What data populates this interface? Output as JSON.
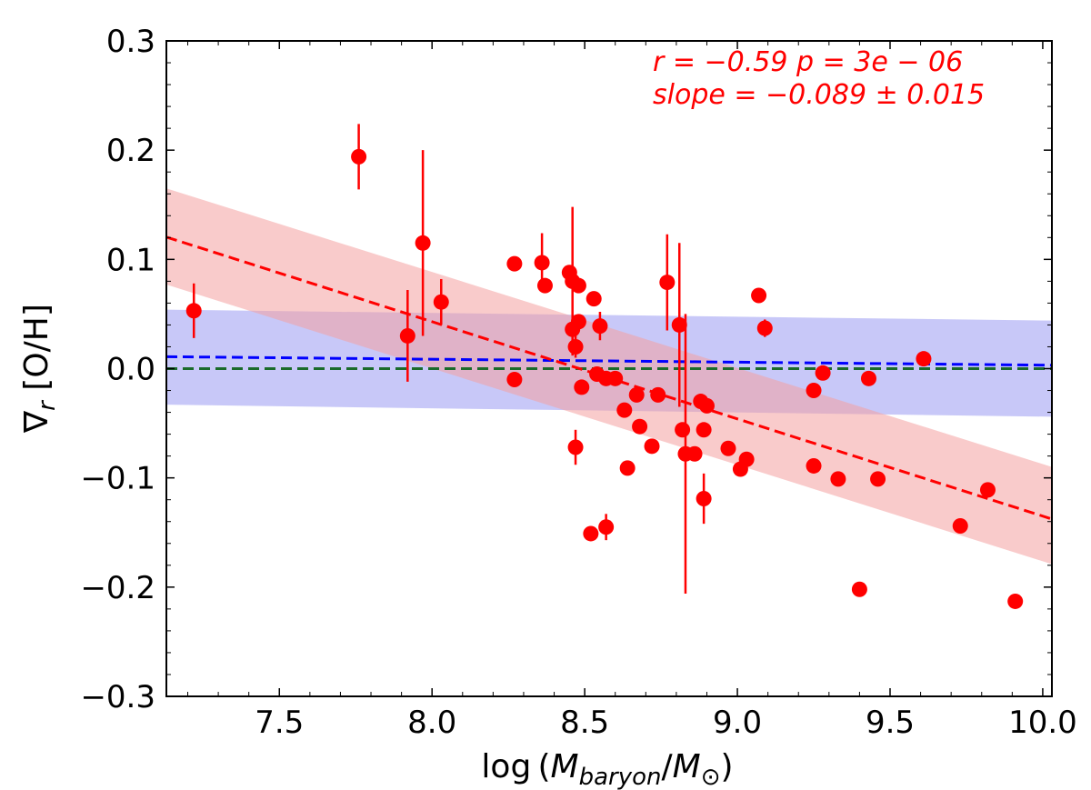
{
  "chart_data": {
    "type": "scatter",
    "xlabel": "log (M_baryon/M_⊙)",
    "xlabel_parts": {
      "prefix": "log (",
      "m1": "M",
      "sub1": "baryon",
      "slash": "/",
      "m2": "M",
      "sub2": "⊙",
      "suffix": ")"
    },
    "ylabel": "∇r [O/H]",
    "ylabel_parts": {
      "nabla": "∇",
      "sub": "r",
      "rest": " [O/H]"
    },
    "xlim": [
      7.13,
      10.03
    ],
    "ylim": [
      -0.3,
      0.3
    ],
    "xticks": [
      7.5,
      8.0,
      8.5,
      9.0,
      9.5,
      10.0
    ],
    "xtick_labels": [
      "7.5",
      "8.0",
      "8.5",
      "9.0",
      "9.5",
      "10.0"
    ],
    "yticks": [
      -0.3,
      -0.2,
      -0.1,
      0.0,
      0.1,
      0.2,
      0.3
    ],
    "ytick_labels": [
      "−0.3",
      "−0.2",
      "−0.1",
      "0.0",
      "0.1",
      "0.2",
      "0.3"
    ],
    "annotations": {
      "line1": "r = −0.59   p = 3e − 06",
      "line2": "slope = −0.089 ± 0.015"
    },
    "colors": {
      "points": "#ff0000",
      "fit_red": "#ff0000",
      "band_red": "#f4a0a0",
      "fit_blue": "#0000ff",
      "band_blue": "#9a9af2",
      "zero_line": "#1a6b2a"
    },
    "fits": {
      "red": {
        "slope": -0.089,
        "intercept": 0.755,
        "band_left": [
          0.077,
          0.165
        ],
        "band_right": [
          -0.179,
          -0.09
        ]
      },
      "blue": {
        "slope": -0.0027,
        "intercept": 0.0302,
        "band_left": [
          -0.033,
          0.054
        ],
        "band_right": [
          -0.044,
          0.044
        ]
      },
      "zero": 0.0
    },
    "points": [
      {
        "x": 7.22,
        "y": 0.053,
        "err": 0.025
      },
      {
        "x": 7.76,
        "y": 0.194,
        "err": 0.03
      },
      {
        "x": 7.92,
        "y": 0.03,
        "err": 0.042
      },
      {
        "x": 7.97,
        "y": 0.115,
        "err": 0.085
      },
      {
        "x": 8.03,
        "y": 0.061,
        "err": 0.021
      },
      {
        "x": 8.27,
        "y": 0.096,
        "err": 0.005
      },
      {
        "x": 8.27,
        "y": -0.01,
        "err": 0.0
      },
      {
        "x": 8.36,
        "y": 0.097,
        "err": 0.027
      },
      {
        "x": 8.37,
        "y": 0.076,
        "err": 0.0
      },
      {
        "x": 8.45,
        "y": 0.088,
        "err": 0.0
      },
      {
        "x": 8.46,
        "y": 0.036,
        "err": 0.0
      },
      {
        "x": 8.46,
        "y": 0.08,
        "err": 0.068
      },
      {
        "x": 8.47,
        "y": 0.02,
        "err": 0.01
      },
      {
        "x": 8.48,
        "y": 0.076,
        "err": 0.0
      },
      {
        "x": 8.48,
        "y": 0.043,
        "err": 0.0
      },
      {
        "x": 8.49,
        "y": -0.017,
        "err": 0.0
      },
      {
        "x": 8.47,
        "y": -0.072,
        "err": 0.016
      },
      {
        "x": 8.53,
        "y": 0.064,
        "err": 0.0
      },
      {
        "x": 8.52,
        "y": -0.151,
        "err": 0.0
      },
      {
        "x": 8.54,
        "y": -0.005,
        "err": 0.0
      },
      {
        "x": 8.55,
        "y": 0.039,
        "err": 0.013
      },
      {
        "x": 8.57,
        "y": -0.145,
        "err": 0.012
      },
      {
        "x": 8.57,
        "y": -0.009,
        "err": 0.0
      },
      {
        "x": 8.6,
        "y": -0.009,
        "err": 0.0
      },
      {
        "x": 8.63,
        "y": -0.038,
        "err": 0.0
      },
      {
        "x": 8.64,
        "y": -0.091,
        "err": 0.0
      },
      {
        "x": 8.67,
        "y": -0.024,
        "err": 0.0
      },
      {
        "x": 8.68,
        "y": -0.053,
        "err": 0.0
      },
      {
        "x": 8.72,
        "y": -0.071,
        "err": 0.0
      },
      {
        "x": 8.74,
        "y": -0.024,
        "err": 0.0
      },
      {
        "x": 8.77,
        "y": 0.079,
        "err": 0.044
      },
      {
        "x": 8.81,
        "y": 0.04,
        "err": 0.075
      },
      {
        "x": 8.82,
        "y": -0.056,
        "err": 0.0
      },
      {
        "x": 8.83,
        "y": -0.078,
        "err": 0.128
      },
      {
        "x": 8.86,
        "y": -0.078,
        "err": 0.0
      },
      {
        "x": 8.88,
        "y": -0.03,
        "err": 0.0
      },
      {
        "x": 8.89,
        "y": -0.056,
        "err": 0.0
      },
      {
        "x": 8.89,
        "y": -0.119,
        "err": 0.023
      },
      {
        "x": 8.9,
        "y": -0.034,
        "err": 0.0
      },
      {
        "x": 8.97,
        "y": -0.073,
        "err": 0.0
      },
      {
        "x": 9.01,
        "y": -0.092,
        "err": 0.0
      },
      {
        "x": 9.03,
        "y": -0.083,
        "err": 0.0
      },
      {
        "x": 9.07,
        "y": 0.067,
        "err": 0.0
      },
      {
        "x": 9.09,
        "y": 0.037,
        "err": 0.008
      },
      {
        "x": 9.25,
        "y": -0.089,
        "err": 0.0
      },
      {
        "x": 9.25,
        "y": -0.02,
        "err": 0.0
      },
      {
        "x": 9.28,
        "y": -0.004,
        "err": 0.0
      },
      {
        "x": 9.33,
        "y": -0.101,
        "err": 0.0
      },
      {
        "x": 9.4,
        "y": -0.202,
        "err": 0.0
      },
      {
        "x": 9.43,
        "y": -0.009,
        "err": 0.0
      },
      {
        "x": 9.46,
        "y": -0.101,
        "err": 0.0
      },
      {
        "x": 9.61,
        "y": 0.009,
        "err": 0.0
      },
      {
        "x": 9.73,
        "y": -0.144,
        "err": 0.0
      },
      {
        "x": 9.82,
        "y": -0.111,
        "err": 0.0
      },
      {
        "x": 9.91,
        "y": -0.213,
        "err": 0.0
      }
    ]
  }
}
